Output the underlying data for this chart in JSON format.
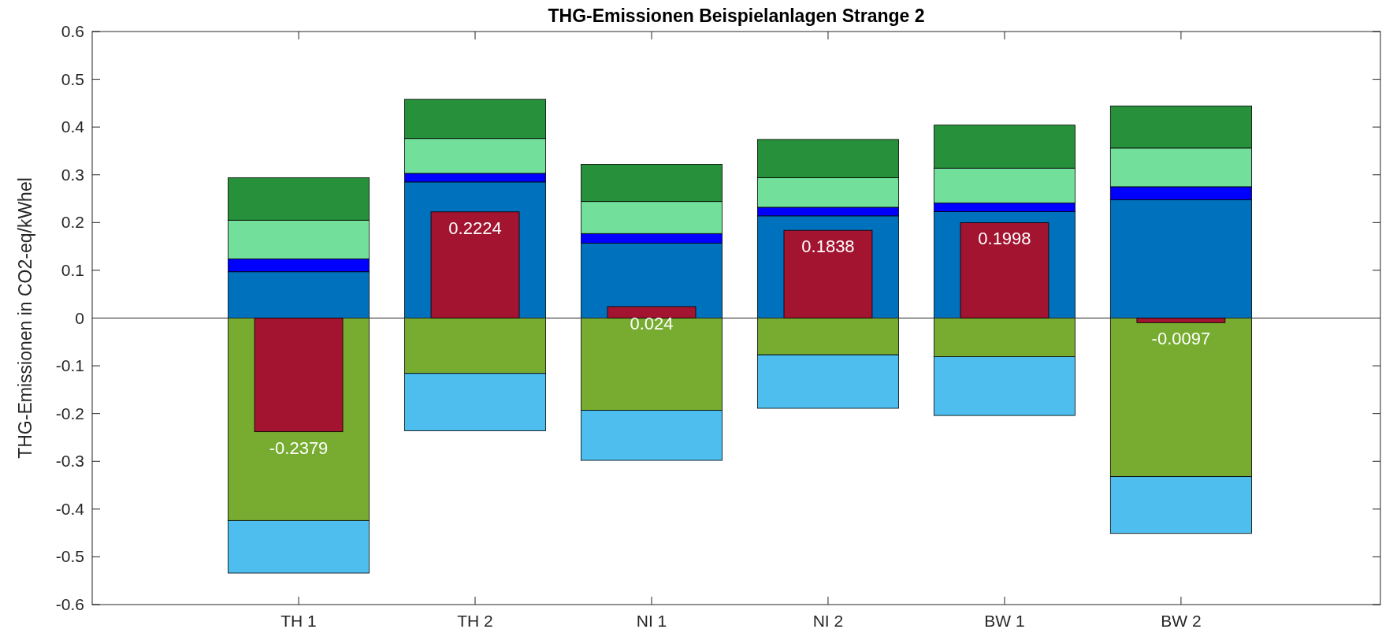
{
  "chart_data": [
    {
      "type": "bar",
      "title": "THG-Emissionen Beispielanlagen Strange 2",
      "ylabel": "THG-Emissionen in CO2-eq/kWhel",
      "categories": [
        "TH 1",
        "TH 2",
        "NI 1",
        "NI 2",
        "BW 1",
        "BW 2"
      ],
      "stacked": true,
      "ylim": [
        -0.6,
        0.6
      ],
      "yticks": [
        -0.6,
        -0.5,
        -0.4,
        -0.3,
        -0.2,
        -0.1,
        0,
        0.1,
        0.2,
        0.3,
        0.4,
        0.5,
        0.6
      ],
      "ref_lines": [
        {
          "axis": "y",
          "value": 0,
          "color": "#262626"
        }
      ],
      "series": [
        {
          "color": "#0072bd",
          "values": [
            0.097,
            0.285,
            0.157,
            0.214,
            0.223,
            0.248
          ]
        },
        {
          "color": "#0000ff",
          "values": [
            0.027,
            0.018,
            0.02,
            0.018,
            0.018,
            0.027
          ]
        },
        {
          "color": "#72e09a",
          "values": [
            0.081,
            0.073,
            0.067,
            0.062,
            0.073,
            0.081
          ]
        },
        {
          "color": "#26903a",
          "values": [
            0.089,
            0.082,
            0.078,
            0.08,
            0.09,
            0.088
          ]
        },
        {
          "color": "#77ac30",
          "values": [
            -0.424,
            -0.116,
            -0.193,
            -0.077,
            -0.081,
            -0.332
          ]
        },
        {
          "color": "#4dbeee",
          "values": [
            -0.11,
            -0.12,
            -0.105,
            -0.112,
            -0.123,
            -0.119
          ]
        }
      ]
    },
    {
      "type": "bar",
      "categories": [
        null,
        null,
        null,
        null,
        null,
        null
      ],
      "ylim": [
        -0.6,
        0.6
      ],
      "tick_labels": false,
      "data_labels": true,
      "series": [
        {
          "color": "#a2142f",
          "values": [
            -0.2379,
            0.2224,
            0.024,
            0.1838,
            0.1998,
            -0.0097
          ]
        }
      ]
    }
  ]
}
